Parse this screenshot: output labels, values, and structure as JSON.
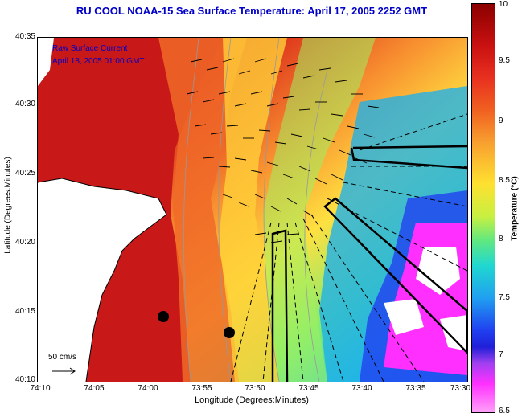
{
  "title": "RU COOL  NOAA-15  Sea Surface Temperature:  April 17, 2005 2252 GMT",
  "legend": {
    "line1": "Raw Surface Current",
    "line2": "April 18, 2005 01:00 GMT"
  },
  "y_axis": {
    "title": "Latitude (Degrees:Minutes)",
    "ticks": [
      "40:35",
      "40:30",
      "40:25",
      "40:20",
      "40:15",
      "40:10"
    ]
  },
  "x_axis": {
    "title": "Longitude (Degrees:Minutes)",
    "ticks": [
      "74:10",
      "74:05",
      "74:00",
      "73:55",
      "73:50",
      "73:45",
      "73:40",
      "73:35",
      "73:30"
    ]
  },
  "scale_vector_label": "50 cm/s",
  "colorbar": {
    "title": "Temperature (°C)",
    "ticks": [
      "10",
      "9.5",
      "9",
      "8.5",
      "8",
      "7.5",
      "7",
      "6.5"
    ]
  },
  "colors": {
    "land": "#ffffff",
    "warm": "#c81010",
    "cold": "#ff30ff",
    "title_blue": "#0000c8"
  }
}
